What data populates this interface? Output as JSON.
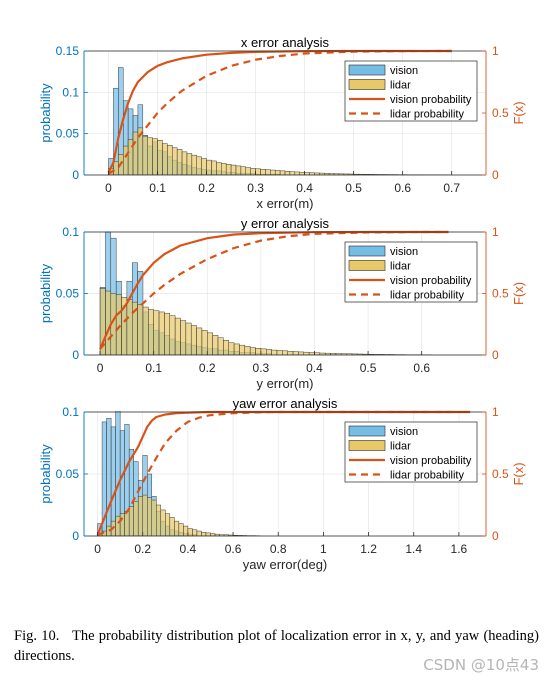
{
  "figure": {
    "caption_label": "Fig. 10.",
    "caption_text": "The probability distribution plot of localization error in x, y, and yaw (heading) directions.",
    "watermark": "CSDN @10点43"
  },
  "colors": {
    "vision_fill": "#76bde6",
    "lidar_fill": "#e8c96a",
    "cdf_line": "#d95319",
    "left_axis": "#0072bd",
    "right_axis": "#d95319"
  },
  "chart_data": [
    {
      "type": "bar",
      "title": "x error analysis",
      "xlabel": "x error(m)",
      "ylabel": "probability",
      "y2label": "F(x)",
      "xlim": [
        -0.05,
        0.77
      ],
      "ylim": [
        0,
        0.15
      ],
      "y2lim": [
        0,
        1
      ],
      "xticks": [
        "0",
        "0.1",
        "0.2",
        "0.3",
        "0.4",
        "0.5",
        "0.6",
        "0.7"
      ],
      "yticks": [
        "0",
        "0.05",
        "0.1",
        "0.15"
      ],
      "y2ticks": [
        "0",
        "0.5",
        "1"
      ],
      "grid": true,
      "legend_position": "top-right",
      "legend": [
        "vision",
        "lidar",
        "vision probability",
        "lidar probability"
      ],
      "bin_width": 0.01,
      "series": [
        {
          "name": "vision",
          "kind": "histogram",
          "bin_start": 0,
          "values": [
            0.02,
            0.105,
            0.13,
            0.09,
            0.08,
            0.072,
            0.085,
            0.048,
            0.035,
            0.04,
            0.03,
            0.028,
            0.022,
            0.018,
            0.015,
            0.013,
            0.011,
            0.009,
            0.008,
            0.007,
            0.006,
            0.005,
            0.005,
            0.004,
            0.003,
            0.003,
            0.002,
            0.002,
            0.002,
            0.002,
            0.001,
            0.001,
            0.001,
            0.001,
            0.001
          ]
        },
        {
          "name": "lidar",
          "kind": "histogram",
          "bin_start": 0,
          "values": [
            0.008,
            0.016,
            0.025,
            0.035,
            0.043,
            0.052,
            0.057,
            0.047,
            0.045,
            0.044,
            0.042,
            0.038,
            0.036,
            0.033,
            0.031,
            0.028,
            0.026,
            0.024,
            0.022,
            0.02,
            0.018,
            0.017,
            0.015,
            0.014,
            0.013,
            0.012,
            0.011,
            0.01,
            0.009,
            0.008,
            0.0075,
            0.007,
            0.0065,
            0.006,
            0.0055,
            0.005,
            0.0045,
            0.004,
            0.0037,
            0.0034,
            0.003,
            0.0028,
            0.0025,
            0.0023,
            0.002,
            0.0018,
            0.0016,
            0.0014,
            0.0013,
            0.0012,
            0.001,
            0.001,
            0.0009,
            0.0008,
            0.0007,
            0.0006,
            0.0006,
            0.0005,
            0.0005,
            0.0004,
            0.0004,
            0.0003,
            0.0003,
            0.0003,
            0.0002,
            0.0002,
            0.0002,
            0.0002,
            0.0001,
            0.0001
          ]
        },
        {
          "name": "vision probability",
          "kind": "cdf",
          "style": "solid",
          "x": [
            0,
            0.01,
            0.02,
            0.03,
            0.04,
            0.05,
            0.06,
            0.08,
            0.1,
            0.12,
            0.15,
            0.2,
            0.25,
            0.3,
            0.4,
            0.5,
            0.6,
            0.7
          ],
          "y": [
            0.02,
            0.1,
            0.3,
            0.45,
            0.58,
            0.68,
            0.75,
            0.83,
            0.88,
            0.91,
            0.94,
            0.97,
            0.985,
            0.993,
            0.998,
            1,
            1,
            1
          ]
        },
        {
          "name": "lidar probability",
          "kind": "cdf",
          "style": "dashed",
          "x": [
            0,
            0.02,
            0.04,
            0.06,
            0.08,
            0.1,
            0.12,
            0.15,
            0.2,
            0.25,
            0.3,
            0.35,
            0.4,
            0.5,
            0.6,
            0.7
          ],
          "y": [
            0.01,
            0.06,
            0.18,
            0.3,
            0.4,
            0.5,
            0.58,
            0.68,
            0.8,
            0.88,
            0.93,
            0.96,
            0.98,
            0.995,
            0.999,
            1
          ]
        }
      ]
    },
    {
      "type": "bar",
      "title": "y error analysis",
      "xlabel": "y error(m)",
      "ylabel": "probability",
      "y2label": "F(x)",
      "xlim": [
        -0.03,
        0.72
      ],
      "ylim": [
        0,
        0.1
      ],
      "y2lim": [
        0,
        1
      ],
      "xticks": [
        "0",
        "0.1",
        "0.2",
        "0.3",
        "0.4",
        "0.5",
        "0.6"
      ],
      "yticks": [
        "0",
        "0.05",
        "0.1"
      ],
      "y2ticks": [
        "0",
        "0.5",
        "1"
      ],
      "grid": true,
      "legend_position": "top-right",
      "legend": [
        "vision",
        "lidar",
        "vision probability",
        "lidar probability"
      ],
      "bin_width": 0.01,
      "series": [
        {
          "name": "vision",
          "kind": "histogram",
          "bin_start": 0,
          "values": [
            0.055,
            0.1,
            0.095,
            0.06,
            0.04,
            0.06,
            0.075,
            0.068,
            0.035,
            0.025,
            0.02,
            0.018,
            0.016,
            0.013,
            0.011,
            0.01,
            0.009,
            0.008,
            0.007,
            0.006,
            0.005,
            0.005,
            0.004,
            0.004,
            0.003,
            0.003,
            0.002,
            0.002,
            0.002,
            0.001,
            0.001,
            0.001
          ]
        },
        {
          "name": "lidar",
          "kind": "histogram",
          "bin_start": 0,
          "values": [
            0.054,
            0.052,
            0.05,
            0.049,
            0.047,
            0.045,
            0.043,
            0.041,
            0.039,
            0.037,
            0.036,
            0.035,
            0.034,
            0.032,
            0.03,
            0.028,
            0.026,
            0.024,
            0.022,
            0.02,
            0.018,
            0.016,
            0.014,
            0.012,
            0.01,
            0.009,
            0.008,
            0.007,
            0.006,
            0.0055,
            0.005,
            0.0045,
            0.004,
            0.0037,
            0.0034,
            0.003,
            0.0028,
            0.0025,
            0.0023,
            0.002,
            0.0018,
            0.0016,
            0.0015,
            0.0013,
            0.0012,
            0.001,
            0.001,
            0.0009,
            0.0008,
            0.0007,
            0.0006,
            0.0005,
            0.0005,
            0.0004,
            0.0004,
            0.0003,
            0.0003,
            0.0002,
            0.0002,
            0.0002,
            0.0001,
            0.0001
          ]
        },
        {
          "name": "vision probability",
          "kind": "cdf",
          "style": "solid",
          "x": [
            0,
            0.01,
            0.02,
            0.03,
            0.04,
            0.05,
            0.06,
            0.07,
            0.08,
            0.1,
            0.12,
            0.15,
            0.2,
            0.25,
            0.3,
            0.4,
            0.5,
            0.6,
            0.65
          ],
          "y": [
            0.05,
            0.15,
            0.25,
            0.32,
            0.36,
            0.42,
            0.5,
            0.58,
            0.65,
            0.75,
            0.82,
            0.89,
            0.95,
            0.98,
            0.99,
            0.998,
            1,
            1,
            1
          ]
        },
        {
          "name": "lidar probability",
          "kind": "cdf",
          "style": "dashed",
          "x": [
            0,
            0.02,
            0.04,
            0.06,
            0.08,
            0.1,
            0.12,
            0.15,
            0.2,
            0.25,
            0.3,
            0.35,
            0.4,
            0.5,
            0.6,
            0.65
          ],
          "y": [
            0.05,
            0.15,
            0.25,
            0.34,
            0.42,
            0.5,
            0.57,
            0.66,
            0.78,
            0.87,
            0.93,
            0.965,
            0.985,
            0.997,
            1,
            1
          ]
        }
      ]
    },
    {
      "type": "bar",
      "title": "yaw error analysis",
      "xlabel": "yaw error(deg)",
      "ylabel": "probability",
      "y2label": "F(x)",
      "xlim": [
        -0.06,
        1.72
      ],
      "ylim": [
        0,
        0.1
      ],
      "y2lim": [
        0,
        1
      ],
      "xticks": [
        "0",
        "0.2",
        "0.4",
        "0.6",
        "0.8",
        "1",
        "1.2",
        "1.4",
        "1.6"
      ],
      "yticks": [
        "0",
        "0.05",
        "0.1"
      ],
      "y2ticks": [
        "0",
        "0.5",
        "1"
      ],
      "grid": true,
      "legend_position": "top-right",
      "legend": [
        "vision",
        "lidar",
        "vision probability",
        "lidar probability"
      ],
      "bin_width": 0.02,
      "series": [
        {
          "name": "vision",
          "kind": "histogram",
          "bin_start": 0,
          "values": [
            0.01,
            0.092,
            0.095,
            0.088,
            0.102,
            0.085,
            0.09,
            0.07,
            0.06,
            0.045,
            0.065,
            0.05,
            0.032,
            0.02,
            0.012,
            0.008,
            0.005,
            0.004,
            0.003,
            0.002,
            0.001,
            0.001
          ]
        },
        {
          "name": "lidar",
          "kind": "histogram",
          "bin_start": 0,
          "values": [
            0.002,
            0.004,
            0.008,
            0.012,
            0.016,
            0.018,
            0.02,
            0.024,
            0.028,
            0.032,
            0.033,
            0.031,
            0.029,
            0.025,
            0.021,
            0.018,
            0.015,
            0.012,
            0.01,
            0.008,
            0.006,
            0.005,
            0.004,
            0.003,
            0.0025,
            0.002,
            0.0015,
            0.001,
            0.001,
            0.0008,
            0.0006,
            0.0005,
            0.0004,
            0.0003,
            0.0003,
            0.0002
          ]
        },
        {
          "name": "vision probability",
          "kind": "cdf",
          "style": "solid",
          "x": [
            0,
            0.02,
            0.06,
            0.1,
            0.14,
            0.18,
            0.2,
            0.22,
            0.24,
            0.26,
            0.3,
            0.35,
            0.4,
            0.5,
            0.6,
            0.8,
            1,
            1.2,
            1.4,
            1.65
          ],
          "y": [
            0.01,
            0.1,
            0.28,
            0.45,
            0.6,
            0.72,
            0.8,
            0.88,
            0.93,
            0.96,
            0.98,
            0.99,
            0.995,
            1,
            1,
            1,
            1,
            1,
            1,
            1
          ]
        },
        {
          "name": "lidar probability",
          "kind": "cdf",
          "style": "dashed",
          "x": [
            0,
            0.06,
            0.1,
            0.14,
            0.18,
            0.22,
            0.26,
            0.3,
            0.35,
            0.4,
            0.45,
            0.5,
            0.6,
            0.7,
            0.8,
            1,
            1.2,
            1.4,
            1.6
          ],
          "y": [
            0.01,
            0.05,
            0.12,
            0.22,
            0.36,
            0.5,
            0.63,
            0.75,
            0.85,
            0.92,
            0.955,
            0.975,
            0.99,
            0.997,
            1,
            1,
            1,
            1,
            1
          ]
        }
      ]
    }
  ]
}
